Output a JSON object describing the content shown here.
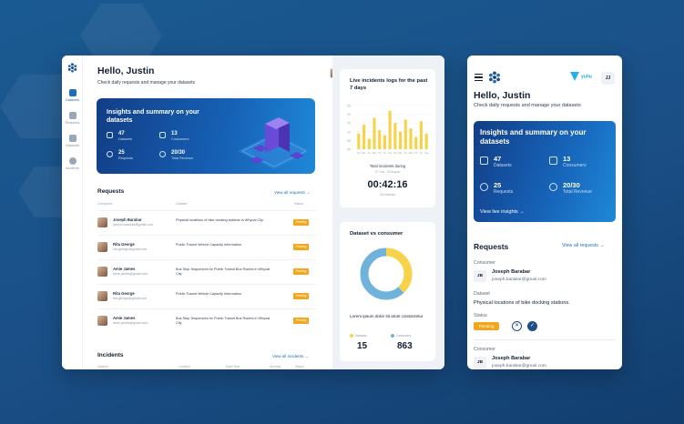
{
  "desktop": {
    "greeting": "Hello, Justin",
    "subtitle": "Check daily requests and manage your datasets",
    "nav": [
      {
        "label": "Datasets",
        "icon": "datasets-icon",
        "active": true
      },
      {
        "label": "Requests",
        "icon": "requests-icon",
        "active": false
      },
      {
        "label": "Datasets",
        "icon": "grid-icon",
        "active": false
      },
      {
        "label": "Incidents",
        "icon": "incidents-icon",
        "active": false
      }
    ],
    "banner": {
      "title": "Insights and summary on your datasets",
      "stats": [
        {
          "value": "47",
          "label": "Datasets",
          "icon": "database-icon"
        },
        {
          "value": "13",
          "label": "Consumers",
          "icon": "users-icon"
        },
        {
          "value": "25",
          "label": "Requests",
          "icon": "chat-icon"
        },
        {
          "value": "20/30",
          "label": "Total Revenue",
          "icon": "dollar-icon"
        }
      ]
    },
    "requests": {
      "title": "Requests",
      "link": "View all requests →",
      "columns": [
        "Consumer",
        "Dataset",
        "Status"
      ],
      "rows": [
        {
          "name": "Joseph Barabar",
          "email": "joseph.barabar@gmail.com",
          "dataset": "Physical locations of bike docking stations in Whyoal City",
          "status": "Pending"
        },
        {
          "name": "Rita George",
          "email": "rita.george@gmail.com",
          "dataset": "Public Transit Vehicle Capacity Information",
          "status": "Pending"
        },
        {
          "name": "Amie James",
          "email": "amie.james@gmail.com",
          "dataset": "Bus Stop Sequences for Public Transit Bus Routes in Whyoal City",
          "status": "Pending"
        },
        {
          "name": "Rita George",
          "email": "rita.george@gmail.com",
          "dataset": "Public Transit Vehicle Capacity Information",
          "status": "Pending"
        },
        {
          "name": "Amie James",
          "email": "amie.james@gmail.com",
          "dataset": "Bus Stop Sequences for Public Transit Bus Routes in Whyoal City",
          "status": "Pending"
        }
      ]
    },
    "incidents": {
      "title": "Incidents",
      "link": "View all incidents →",
      "columns": [
        "Dataset",
        "Location",
        "Date/Time",
        "Severity",
        "Status"
      ]
    },
    "live_logs": {
      "title": "Live incidents logs for the past 7 days",
      "total_label": "Total incidents during",
      "date_range": "27 July - 03 August",
      "timer": "00:42:16",
      "incidents_count": "18 incidents"
    },
    "donut_card": {
      "title": "Dataset vs consumer",
      "text": "Lorem ipsum dolor sit amet consectetur",
      "legend": [
        {
          "label": "Datasets",
          "value": "15",
          "color": "#f6d34a"
        },
        {
          "label": "Consumers",
          "value": "863",
          "color": "#6fb3db"
        }
      ]
    }
  },
  "chart_data": {
    "type": "bar",
    "categories": [
      "Su",
      "Mo",
      "Tu",
      "We",
      "Th",
      "Fr",
      "Sa",
      "Su",
      "Mo",
      "Tu",
      "We",
      "Th",
      "Fr",
      "Sa"
    ],
    "values": [
      9,
      14,
      6,
      18,
      11,
      8,
      22,
      15,
      10,
      17,
      12,
      7,
      16,
      9
    ],
    "ylim": [
      0,
      25
    ],
    "ytick_labels": [
      "25",
      "20",
      "15",
      "10",
      "05",
      "00"
    ],
    "grid": true,
    "color": "#f6d34a"
  },
  "mobile": {
    "brand": "yuhu",
    "user_initials": "JJ",
    "greeting": "Hello, Justin",
    "subtitle": "Check daily requests and manage your datasets",
    "banner": {
      "title": "Insights and summary on your datasets",
      "stats": [
        {
          "value": "47",
          "label": "Datasets",
          "icon": "database-icon"
        },
        {
          "value": "13",
          "label": "Consumers",
          "icon": "users-icon"
        },
        {
          "value": "25",
          "label": "Requests",
          "icon": "chat-icon"
        },
        {
          "value": "20/30",
          "label": "Total Revenue",
          "icon": "dollar-icon"
        }
      ],
      "link": "View live insights →"
    },
    "requests": {
      "title": "Requests",
      "link": "View all requests →",
      "consumer_label": "Consumer",
      "dataset_label": "Dataset",
      "status_label": "Status",
      "item1": {
        "initials": "JB",
        "name": "Joseph Barabar",
        "email": "joseph.barabar@gmail.com",
        "dataset": "Physical locations of bike docking stations.",
        "status": "Pending"
      },
      "item2": {
        "initials": "JB",
        "name": "Joseph Barabar",
        "email": "joseph.barabar@gmail.com"
      }
    }
  }
}
